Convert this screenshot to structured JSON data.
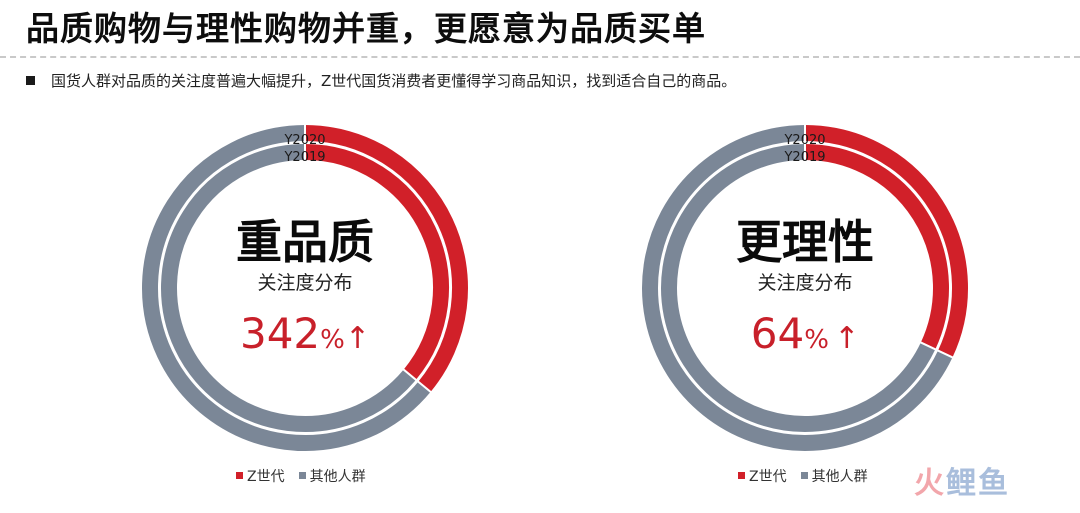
{
  "header": {
    "title": "品质购物与理性购物并重，更愿意为品质买单",
    "bullet": "国货人群对品质的关注度普遍大幅提升，Z世代国货消费者更懂得学习商品知识，找到适合自己的商品。"
  },
  "colors": {
    "z_gen": "#d12029",
    "others": "#7b8797",
    "accent_text": "#c8202a"
  },
  "chart_data": [
    {
      "type": "pie",
      "variant": "nested-donut",
      "center_title": "重品质",
      "center_subtitle": "关注度分布",
      "growth_value": "342",
      "growth_unit": "%",
      "growth_arrow": "↑",
      "rings": [
        {
          "label": "Y2020",
          "values": {
            "Z世代": 0.36,
            "其他人群": 0.64
          }
        },
        {
          "label": "Y2019",
          "values": {
            "Z世代": 0.36,
            "其他人群": 0.64
          }
        }
      ],
      "legend": [
        {
          "name": "Z世代"
        },
        {
          "name": "其他人群"
        }
      ],
      "legend_position": "bottom"
    },
    {
      "type": "pie",
      "variant": "nested-donut",
      "center_title": "更理性",
      "center_subtitle": "关注度分布",
      "growth_value": "64",
      "growth_unit": "%",
      "growth_arrow": "↑",
      "rings": [
        {
          "label": "Y2020",
          "values": {
            "Z世代": 0.32,
            "其他人群": 0.68
          }
        },
        {
          "label": "Y2019",
          "values": {
            "Z世代": 0.32,
            "其他人群": 0.68
          }
        }
      ],
      "legend": [
        {
          "name": "Z世代"
        },
        {
          "name": "其他人群"
        }
      ],
      "legend_position": "bottom"
    }
  ],
  "watermark": {
    "part1": "火",
    "part2": "鲤鱼"
  }
}
